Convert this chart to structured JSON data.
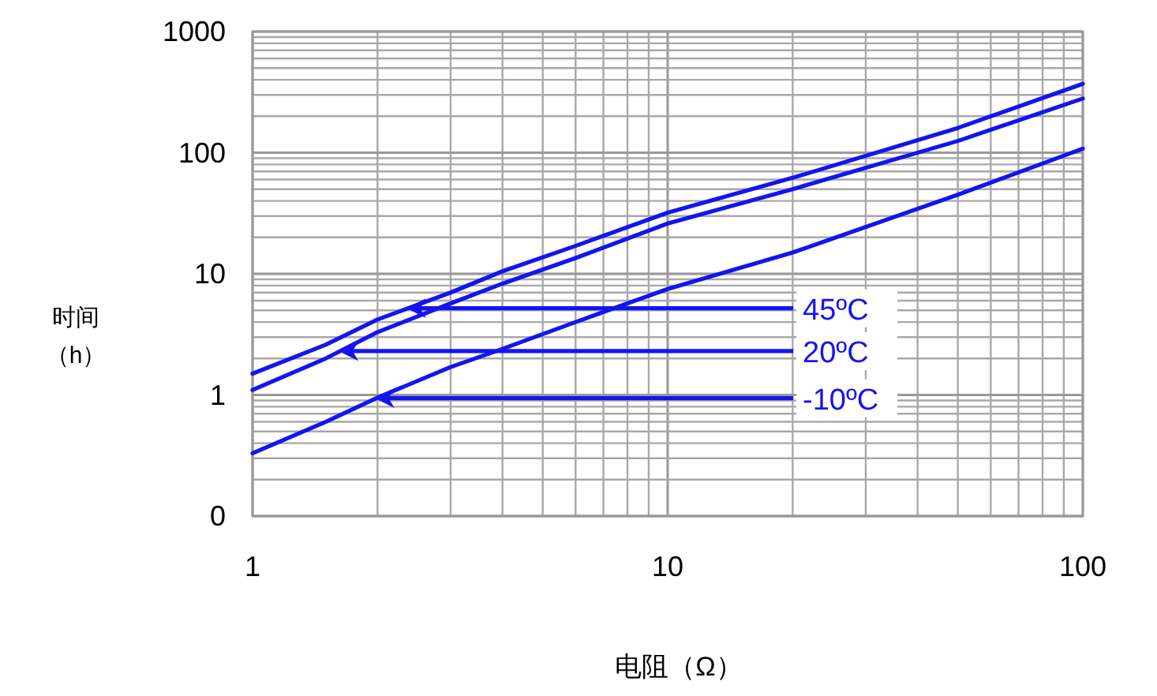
{
  "chart_data": {
    "type": "line",
    "xlabel": "电阻（Ω）",
    "ylabel": "时间（h）",
    "log": "xy",
    "grid": true,
    "marker": "none",
    "line_style": "solid",
    "xlim": [
      1,
      100
    ],
    "xticks": [
      1,
      10,
      100
    ],
    "ylim": [
      0.1,
      1000
    ],
    "yticks": [
      {
        "value": 0.1,
        "label": "0"
      },
      1,
      10,
      100,
      1000
    ],
    "series": [
      {
        "color": "#1414f0",
        "x": [
          1,
          1.5,
          2,
          3,
          4,
          6,
          10,
          20,
          50,
          100
        ],
        "values": [
          1.5,
          2.6,
          4.2,
          7,
          10.5,
          17,
          32,
          62,
          160,
          370
        ]
      },
      {
        "color": "#1414f0",
        "x": [
          1,
          1.5,
          2,
          3,
          4,
          6,
          10,
          20,
          50,
          100
        ],
        "values": [
          1.1,
          2,
          3.3,
          5.7,
          8.3,
          13.5,
          26,
          50,
          125,
          280
        ]
      },
      {
        "color": "#1414f0",
        "x": [
          1,
          1.5,
          2,
          3,
          4,
          6,
          10,
          20,
          50,
          100
        ],
        "values": [
          0.33,
          0.6,
          0.95,
          1.7,
          2.4,
          4,
          7.5,
          15,
          45,
          108
        ]
      }
    ],
    "annotations": [
      {
        "text": "45ºC",
        "x": 2.37,
        "y": 5.2
      },
      {
        "text": "20ºC",
        "x": 1.63,
        "y": 2.3
      },
      {
        "text": "-10ºC",
        "x": 1.99,
        "y": 0.94
      }
    ]
  }
}
